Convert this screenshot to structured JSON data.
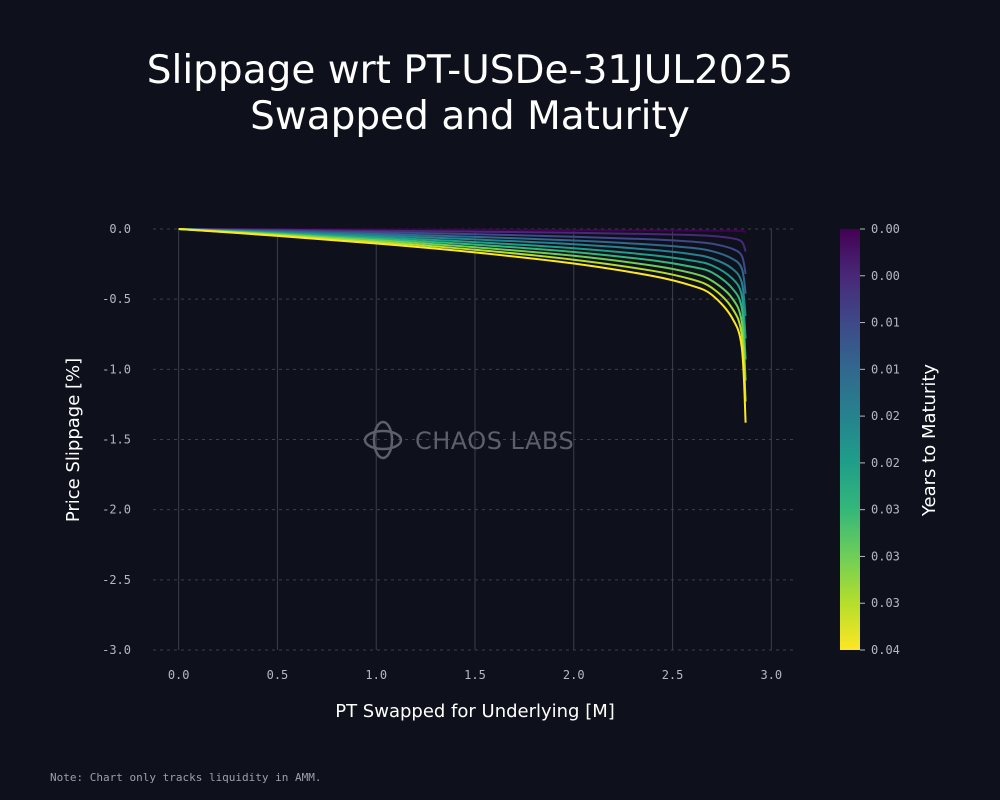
{
  "title_line1": "Slippage wrt PT-USDe-31JUL2025",
  "title_line2": "Swapped and Maturity",
  "note": "Note: Chart only tracks liquidity in AMM.",
  "watermark": "CHAOS LABS",
  "colorbar": {
    "label": "Years to Maturity",
    "ticks": [
      "0.00",
      "0.00",
      "0.01",
      "0.01",
      "0.02",
      "0.02",
      "0.03",
      "0.03",
      "0.03",
      "0.04"
    ],
    "colors": [
      "#440154",
      "#482878",
      "#3e4989",
      "#31688e",
      "#26828e",
      "#1f9e89",
      "#35b779",
      "#6ece58",
      "#b5de2b",
      "#fde725"
    ]
  },
  "chart_data": {
    "type": "line",
    "title": "Slippage wrt PT-USDe-31JUL2025 Swapped and Maturity",
    "xlabel": "PT Swapped for Underlying [M]",
    "ylabel": "Price Slippage [%]",
    "xlim": [
      -0.13,
      3.13
    ],
    "ylim": [
      -3.0,
      0.0
    ],
    "xticks": [
      "0.0",
      "0.5",
      "1.0",
      "1.5",
      "2.0",
      "2.5",
      "3.0"
    ],
    "xtick_values": [
      0.0,
      0.5,
      1.0,
      1.5,
      2.0,
      2.5,
      3.0
    ],
    "yticks": [
      "0.0",
      "-0.5",
      "-1.0",
      "-1.5",
      "-2.0",
      "-2.5",
      "-3.0"
    ],
    "ytick_values": [
      0.0,
      -0.5,
      -1.0,
      -1.5,
      -2.0,
      -2.5,
      -3.0
    ],
    "grid": true,
    "x": [
      0.0,
      0.5,
      1.0,
      1.5,
      2.0,
      2.4,
      2.6,
      2.7,
      2.8,
      2.85,
      2.87
    ],
    "series": [
      {
        "color": "#440154",
        "values": [
          0.0,
          -0.002,
          -0.004,
          -0.006,
          -0.008,
          -0.01,
          -0.011,
          -0.012,
          -0.013,
          -0.015,
          -0.02
        ]
      },
      {
        "color": "#482878",
        "values": [
          0.0,
          -0.006,
          -0.012,
          -0.019,
          -0.027,
          -0.036,
          -0.043,
          -0.05,
          -0.066,
          -0.09,
          -0.16
        ]
      },
      {
        "color": "#3e4989",
        "values": [
          0.0,
          -0.011,
          -0.023,
          -0.037,
          -0.055,
          -0.074,
          -0.09,
          -0.105,
          -0.14,
          -0.19,
          -0.32
        ]
      },
      {
        "color": "#31688e",
        "values": [
          0.0,
          -0.017,
          -0.035,
          -0.056,
          -0.082,
          -0.112,
          -0.135,
          -0.158,
          -0.21,
          -0.28,
          -0.46
        ]
      },
      {
        "color": "#26828e",
        "values": [
          0.0,
          -0.022,
          -0.046,
          -0.074,
          -0.109,
          -0.149,
          -0.18,
          -0.21,
          -0.28,
          -0.38,
          -0.62
        ]
      },
      {
        "color": "#1f9e89",
        "values": [
          0.0,
          -0.028,
          -0.058,
          -0.093,
          -0.137,
          -0.187,
          -0.225,
          -0.26,
          -0.35,
          -0.47,
          -0.78
        ]
      },
      {
        "color": "#35b779",
        "values": [
          0.0,
          -0.033,
          -0.069,
          -0.111,
          -0.164,
          -0.224,
          -0.27,
          -0.31,
          -0.42,
          -0.56,
          -0.93
        ]
      },
      {
        "color": "#6ece58",
        "values": [
          0.0,
          -0.038,
          -0.08,
          -0.13,
          -0.191,
          -0.261,
          -0.315,
          -0.37,
          -0.49,
          -0.66,
          -1.08
        ]
      },
      {
        "color": "#b5de2b",
        "values": [
          0.0,
          -0.044,
          -0.092,
          -0.148,
          -0.219,
          -0.298,
          -0.36,
          -0.42,
          -0.56,
          -0.75,
          -1.23
        ]
      },
      {
        "color": "#fde725",
        "values": [
          0.0,
          -0.049,
          -0.103,
          -0.167,
          -0.246,
          -0.335,
          -0.405,
          -0.47,
          -0.63,
          -0.84,
          -1.38
        ]
      }
    ]
  }
}
